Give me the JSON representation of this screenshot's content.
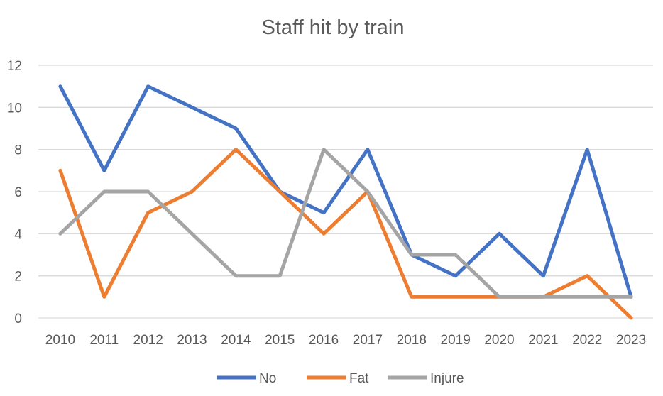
{
  "chart_data": {
    "type": "line",
    "title": "Staff hit by train",
    "xlabel": "",
    "ylabel": "",
    "categories": [
      "2010",
      "2011",
      "2012",
      "2013",
      "2014",
      "2015",
      "2016",
      "2017",
      "2018",
      "2019",
      "2020",
      "2021",
      "2022",
      "2023"
    ],
    "ylim": [
      0,
      12
    ],
    "yticks": [
      0,
      2,
      4,
      6,
      8,
      10,
      12
    ],
    "grid": true,
    "legend_position": "bottom",
    "series": [
      {
        "name": "No",
        "color": "#4472C4",
        "values": [
          11,
          7,
          11,
          10,
          9,
          6,
          5,
          8,
          3,
          2,
          4,
          2,
          8,
          1
        ]
      },
      {
        "name": "Fat",
        "color": "#ED7D31",
        "values": [
          7,
          1,
          5,
          6,
          8,
          6,
          4,
          6,
          1,
          1,
          1,
          1,
          2,
          0
        ]
      },
      {
        "name": "Injure",
        "color": "#A5A5A5",
        "values": [
          4,
          6,
          6,
          4,
          2,
          2,
          8,
          6,
          3,
          3,
          1,
          1,
          1,
          1
        ]
      }
    ]
  }
}
